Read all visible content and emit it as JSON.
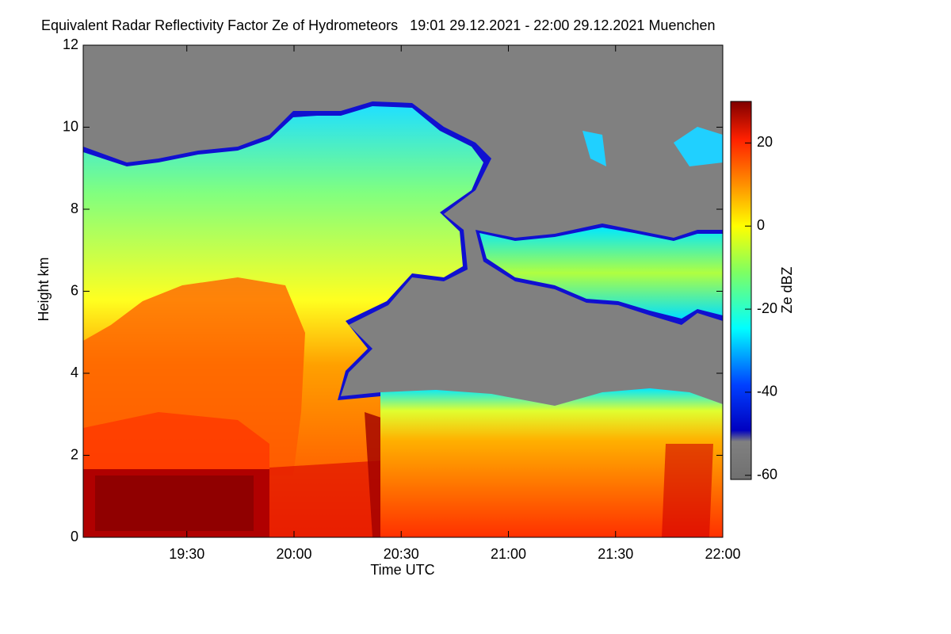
{
  "chart_data": {
    "type": "heatmap",
    "title": "Equivalent Radar Reflectivity Factor Ze of Hydrometeors   19:01 29.12.2021 - 22:00 29.12.2021 Muenchen",
    "x_label": "Time UTC",
    "y_label": "Height km",
    "colorbar_label": "Ze dBZ",
    "xlim": [
      19.0167,
      22.0
    ],
    "xticks": [
      {
        "value": 19.5,
        "label": "19:30"
      },
      {
        "value": 20.0,
        "label": "20:00"
      },
      {
        "value": 20.5,
        "label": "20:30"
      },
      {
        "value": 21.0,
        "label": "21:00"
      },
      {
        "value": 21.5,
        "label": "21:30"
      },
      {
        "value": 22.0,
        "label": "22:00"
      }
    ],
    "ylim": [
      0,
      12
    ],
    "yticks": [
      0,
      2,
      4,
      6,
      8,
      10,
      12
    ],
    "clim": [
      -61,
      30
    ],
    "cticks": [
      20,
      0,
      -20,
      -40,
      -60
    ]
  }
}
